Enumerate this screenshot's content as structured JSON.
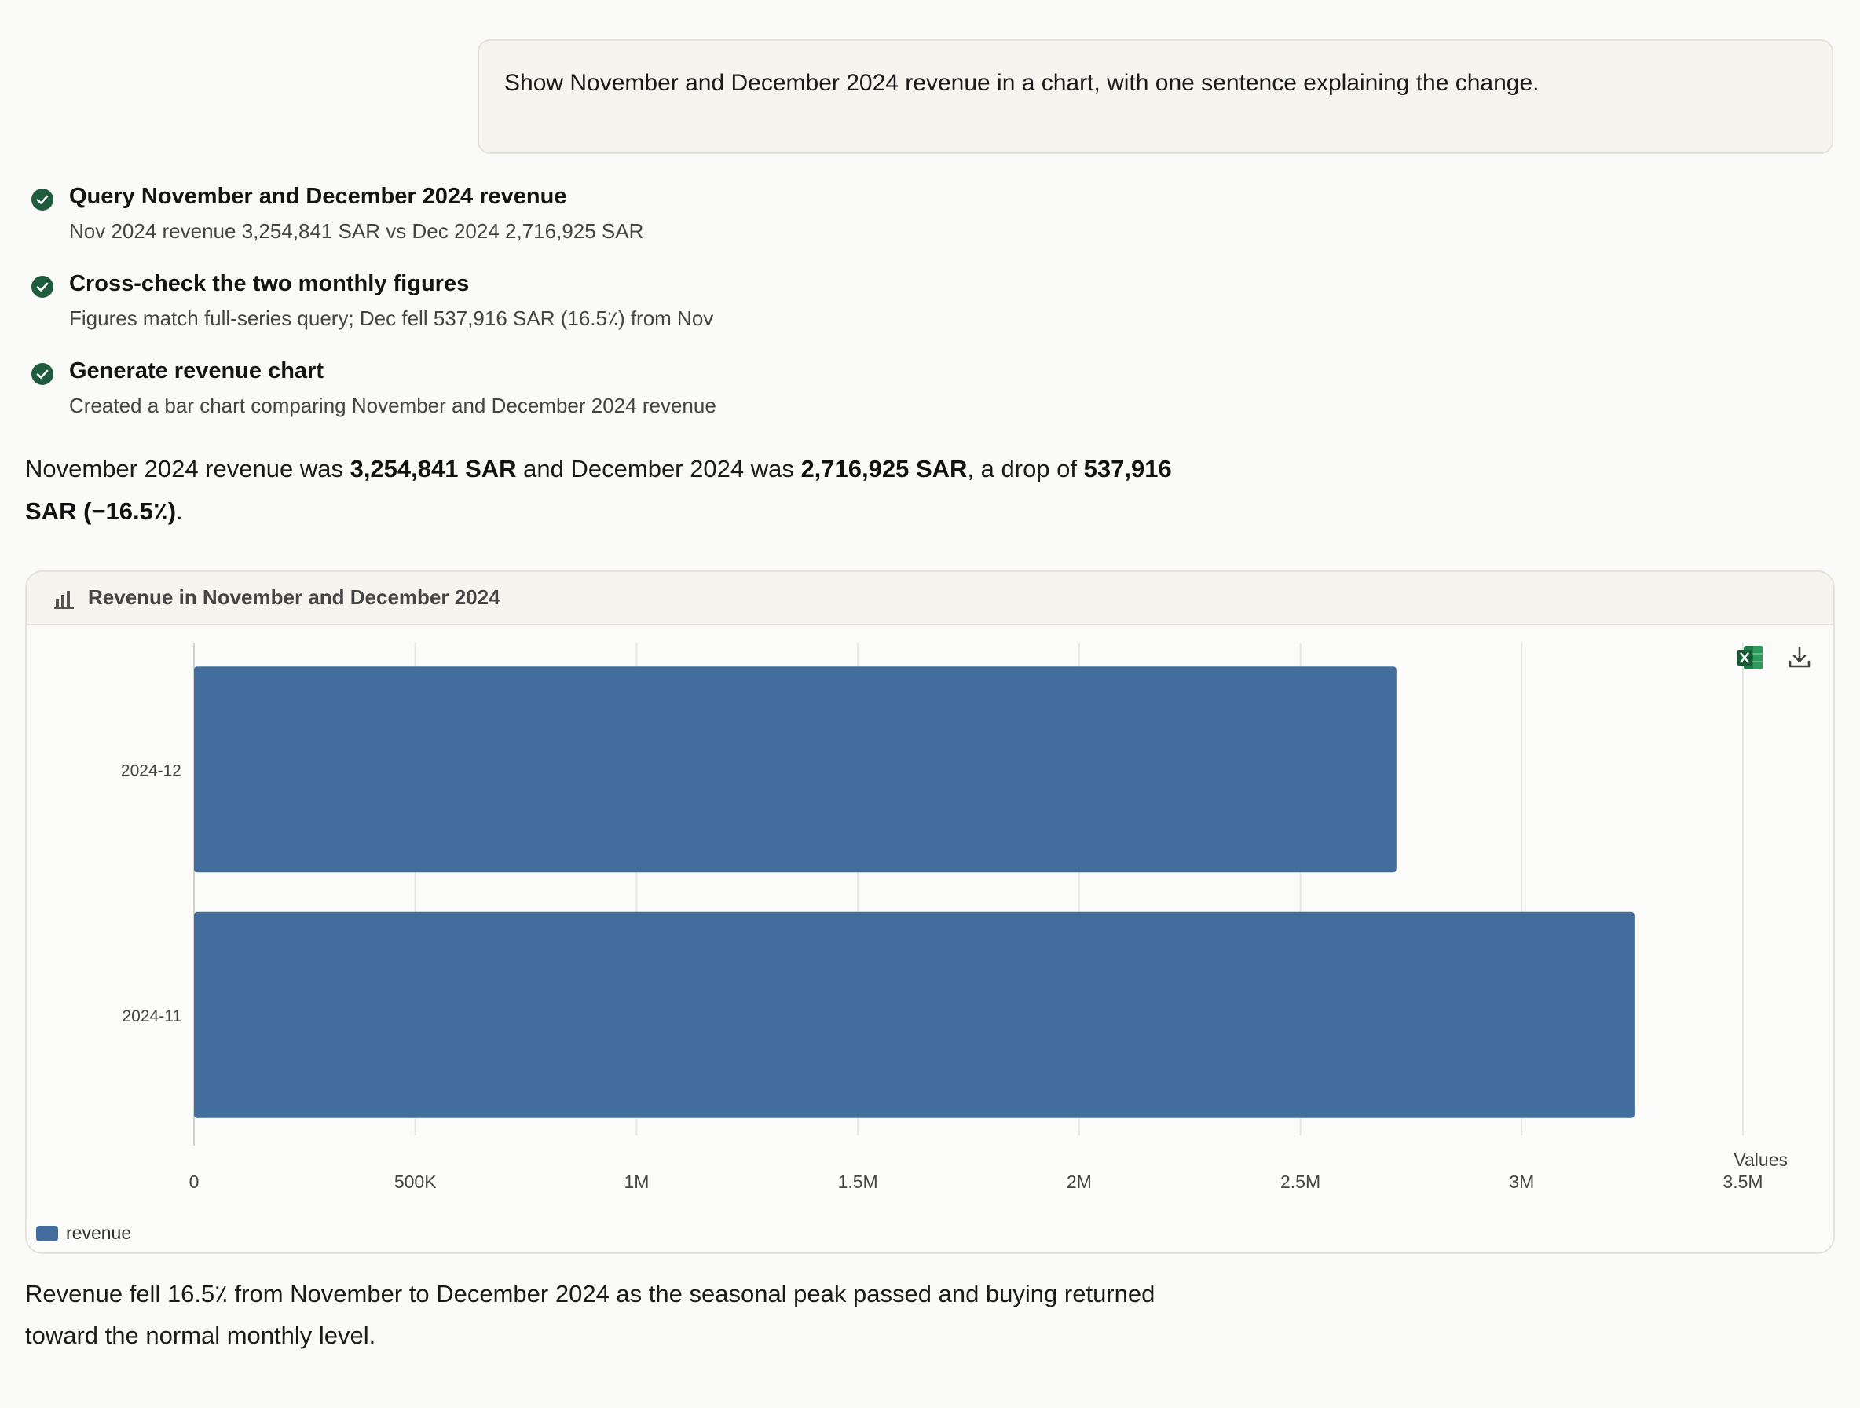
{
  "user_message": "Show November and December 2024 revenue in a chart, with one sentence explaining the change.",
  "steps": [
    {
      "title": "Query November and December 2024 revenue",
      "detail": "Nov 2024 revenue 3,254,841 SAR vs Dec 2024 2,716,925 SAR"
    },
    {
      "title": "Cross-check the two monthly figures",
      "detail": "Figures match full-series query; Dec fell 537,916 SAR (16.5٪) from Nov"
    },
    {
      "title": "Generate revenue chart",
      "detail": "Created a bar chart comparing November and December 2024 revenue"
    }
  ],
  "summary": {
    "p1": "November 2024 revenue was ",
    "b1": "3,254,841 SAR",
    "p2": " and December 2024 was ",
    "b2": "2,716,925 SAR",
    "p3": ", a drop of ",
    "b3": "537,916 SAR (−16.5٪)",
    "p4": "."
  },
  "chart_card": {
    "title": "Revenue in November and December 2024",
    "icons": [
      "bar-chart-icon",
      "excel-icon",
      "download-icon"
    ]
  },
  "chart_data": {
    "type": "bar",
    "orientation": "horizontal",
    "categories": [
      "2024-12",
      "2024-11"
    ],
    "series": [
      {
        "name": "revenue",
        "values": [
          2716925,
          3254841
        ],
        "color": "#426d9c"
      }
    ],
    "xlabel": "Values",
    "xlim": [
      0,
      3500000
    ],
    "xticks": [
      0,
      500000,
      1000000,
      1500000,
      2000000,
      2500000,
      3000000,
      3500000
    ],
    "xtick_labels": [
      "0",
      "500K",
      "1M",
      "1.5M",
      "2M",
      "2.5M",
      "3M",
      "3.5M"
    ],
    "grid": true,
    "legend": "bottom-left"
  },
  "closing": "Revenue fell 16.5٪ from November to December 2024 as the seasonal peak passed and buying returned toward the normal monthly level."
}
